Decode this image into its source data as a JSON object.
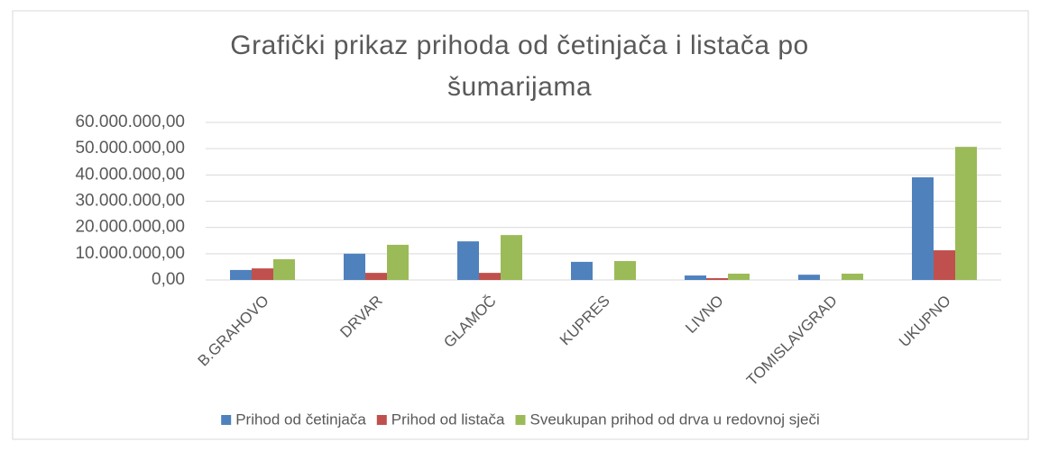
{
  "chart_data": {
    "type": "bar",
    "title": "Grafički prikaz prihoda od četinjača i listača po šumarijama",
    "categories": [
      "B.GRAHOVO",
      "DRVAR",
      "GLAMOČ",
      "KUPRES",
      "LIVNO",
      "TOMISLAVGRAD",
      "UKUPNO"
    ],
    "series": [
      {
        "name": "Prihod od četinjača",
        "color": "#4f81bd",
        "values": [
          3800000,
          10000000,
          14700000,
          6900000,
          1700000,
          2000000,
          39100000
        ]
      },
      {
        "name": "Prihod od listača",
        "color": "#c0504d",
        "values": [
          4400000,
          2700000,
          2700000,
          0,
          700000,
          0,
          11300000
        ]
      },
      {
        "name": "Sveukupan prihod od drva u redovnoj sječi",
        "color": "#9bbb59",
        "values": [
          7900000,
          13400000,
          17100000,
          7200000,
          2400000,
          2400000,
          50700000
        ]
      }
    ],
    "ylim": [
      0,
      60000000
    ],
    "yticks": [
      {
        "value": 0,
        "label": "0,00"
      },
      {
        "value": 10000000,
        "label": "10.000.000,00"
      },
      {
        "value": 20000000,
        "label": "20.000.000,00"
      },
      {
        "value": 30000000,
        "label": "30.000.000,00"
      },
      {
        "value": 40000000,
        "label": "40.000.000,00"
      },
      {
        "value": 50000000,
        "label": "50.000.000,00"
      },
      {
        "value": 60000000,
        "label": "60.000.000,00"
      }
    ],
    "grid": true,
    "legend": "bottom"
  }
}
